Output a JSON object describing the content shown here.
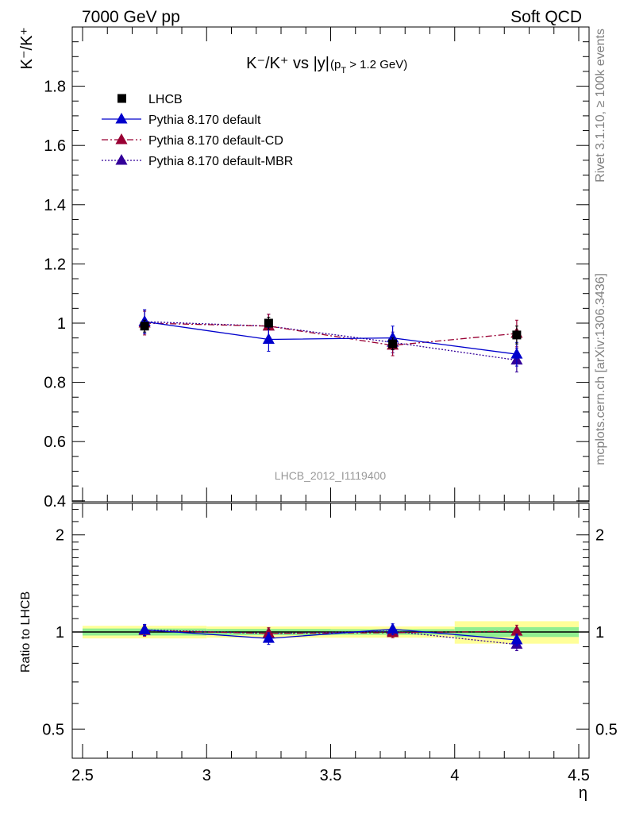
{
  "header": {
    "left": "7000 GeV pp",
    "right": "Soft QCD"
  },
  "side_labels": {
    "rivet": "Rivet 3.1.10, ≥ 100k events",
    "mcplots": "mcplots.cern.ch [arXiv:1306.3436]"
  },
  "main_panel": {
    "title": "K⁻/K⁺ vs |y|",
    "title_sub": "(p",
    "title_sub_T": "T",
    "title_sub_rest": " > 1.2 GeV)",
    "ylabel": "K⁻/K⁺",
    "watermark": "LHCB_2012_I1119400"
  },
  "ratio_panel": {
    "ylabel": "Ratio to LHCB"
  },
  "colors": {
    "data": "#000000",
    "default": "#0000cc",
    "cd": "#990033",
    "mbr": "#330099",
    "band_inner": "#90ee90",
    "band_outer": "#ffff99",
    "axis": "#000000",
    "side_text": "#808080"
  },
  "chart_data": [
    {
      "type": "scatter",
      "panel": "main",
      "xlabel": "η",
      "ylabel": "K⁻/K⁺",
      "xlim": [
        2.5,
        4.5
      ],
      "ylim": [
        0.4,
        2.0
      ],
      "yticks": [
        {
          "value": 0.4,
          "label": "0.4"
        },
        {
          "value": 0.6,
          "label": "0.6"
        },
        {
          "value": 0.8,
          "label": "0.8"
        },
        {
          "value": 1.0,
          "label": "1"
        },
        {
          "value": 1.2,
          "label": "1.2"
        },
        {
          "value": 1.4,
          "label": "1.4"
        },
        {
          "value": 1.6,
          "label": "1.6"
        },
        {
          "value": 1.8,
          "label": "1.8"
        }
      ],
      "legend_position": "top-left",
      "series": [
        {
          "name": "LHCB",
          "key": "data",
          "style": "square",
          "dash": "",
          "x": [
            2.75,
            3.25,
            3.75,
            4.25
          ],
          "y": [
            0.99,
            1.0,
            0.93,
            0.96
          ],
          "err": [
            0.02,
            0.02,
            0.02,
            0.03
          ]
        },
        {
          "name": "Pythia 8.170 default",
          "key": "default",
          "style": "triangle",
          "dash": "",
          "x": [
            2.75,
            3.25,
            3.75,
            4.25
          ],
          "y": [
            1.005,
            0.945,
            0.95,
            0.895
          ],
          "err": [
            0.04,
            0.04,
            0.04,
            0.04
          ]
        },
        {
          "name": "Pythia 8.170 default-CD",
          "key": "cd",
          "style": "triangle",
          "dash": "8,3,2,3",
          "x": [
            2.75,
            3.25,
            3.75,
            4.25
          ],
          "y": [
            1.0,
            0.99,
            0.925,
            0.965
          ],
          "err": [
            0.04,
            0.04,
            0.035,
            0.045
          ]
        },
        {
          "name": "Pythia 8.170 default-MBR",
          "key": "mbr",
          "style": "triangle",
          "dash": "2,2",
          "x": [
            2.75,
            3.25,
            3.75,
            4.25
          ],
          "y": [
            1.005,
            0.99,
            0.935,
            0.875
          ],
          "err": [
            0.04,
            0.04,
            0.035,
            0.04
          ]
        }
      ]
    },
    {
      "type": "scatter",
      "panel": "ratio",
      "xlabel": "η",
      "ylabel": "Ratio to LHCB",
      "xlim": [
        2.5,
        4.5
      ],
      "ylim": [
        0.36,
        2.45
      ],
      "log_y": true,
      "xticks": [
        {
          "value": 2.5,
          "label": "2.5"
        },
        {
          "value": 3.0,
          "label": "3"
        },
        {
          "value": 3.5,
          "label": "3.5"
        },
        {
          "value": 4.0,
          "label": "4"
        },
        {
          "value": 4.5,
          "label": "4.5"
        }
      ],
      "yticks": [
        {
          "value": 0.5,
          "label": "0.5"
        },
        {
          "value": 1.0,
          "label": "1"
        },
        {
          "value": 2.0,
          "label": "2"
        }
      ],
      "bands": {
        "edges": [
          2.5,
          3.0,
          3.5,
          4.0,
          4.5
        ],
        "inner": [
          0.025,
          0.022,
          0.02,
          0.035
        ],
        "outer": [
          0.045,
          0.04,
          0.04,
          0.08
        ]
      },
      "series": [
        {
          "name": "Pythia 8.170 default",
          "key": "default",
          "dash": "",
          "x": [
            2.75,
            3.25,
            3.75,
            4.25
          ],
          "y": [
            1.015,
            0.955,
            1.02,
            0.945
          ],
          "err": [
            0.04,
            0.04,
            0.04,
            0.04
          ]
        },
        {
          "name": "Pythia 8.170 default-CD",
          "key": "cd",
          "dash": "8,3,2,3",
          "x": [
            2.75,
            3.25,
            3.75,
            4.25
          ],
          "y": [
            1.01,
            0.99,
            0.995,
            1.005
          ],
          "err": [
            0.04,
            0.04,
            0.035,
            0.045
          ]
        },
        {
          "name": "Pythia 8.170 default-MBR",
          "key": "mbr",
          "dash": "2,2",
          "x": [
            2.75,
            3.25,
            3.75,
            4.25
          ],
          "y": [
            1.015,
            0.99,
            1.005,
            0.915
          ],
          "err": [
            0.04,
            0.04,
            0.035,
            0.04
          ]
        }
      ]
    }
  ]
}
